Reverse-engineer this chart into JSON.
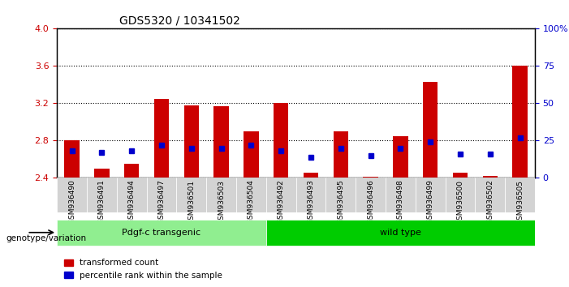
{
  "title": "GDS5320 / 10341502",
  "samples": [
    "GSM936490",
    "GSM936491",
    "GSM936494",
    "GSM936497",
    "GSM936501",
    "GSM936503",
    "GSM936504",
    "GSM936492",
    "GSM936493",
    "GSM936495",
    "GSM936496",
    "GSM936498",
    "GSM936499",
    "GSM936500",
    "GSM936502",
    "GSM936505"
  ],
  "transformed_count": [
    2.8,
    2.5,
    2.55,
    3.25,
    3.18,
    3.17,
    2.9,
    3.2,
    2.46,
    2.9,
    2.41,
    2.85,
    3.43,
    2.46,
    2.42,
    3.6
  ],
  "percentile_rank": [
    18,
    17,
    18,
    22,
    20,
    20,
    22,
    18,
    14,
    20,
    15,
    20,
    24,
    16,
    16,
    27
  ],
  "baseline": 2.4,
  "ylim_left": [
    2.4,
    4.0
  ],
  "ylim_right": [
    0,
    100
  ],
  "yticks_left": [
    2.4,
    2.8,
    3.2,
    3.6,
    4.0
  ],
  "yticks_right": [
    0,
    25,
    50,
    75,
    100
  ],
  "ytick_labels_right": [
    "0",
    "25",
    "50",
    "75",
    "100%"
  ],
  "groups": [
    {
      "label": "Pdgf-c transgenic",
      "start": 0,
      "end": 7,
      "color": "#90EE90"
    },
    {
      "label": "wild type",
      "start": 7,
      "end": 16,
      "color": "#00CC00"
    }
  ],
  "group_label": "genotype/variation",
  "bar_color_red": "#CC0000",
  "bar_color_blue": "#0000CC",
  "background_plot": "#FFFFFF",
  "background_xtick": "#D3D3D3",
  "legend_items": [
    "transformed count",
    "percentile rank within the sample"
  ],
  "right_yaxis_color": "#0000CC",
  "left_yaxis_color": "#CC0000"
}
